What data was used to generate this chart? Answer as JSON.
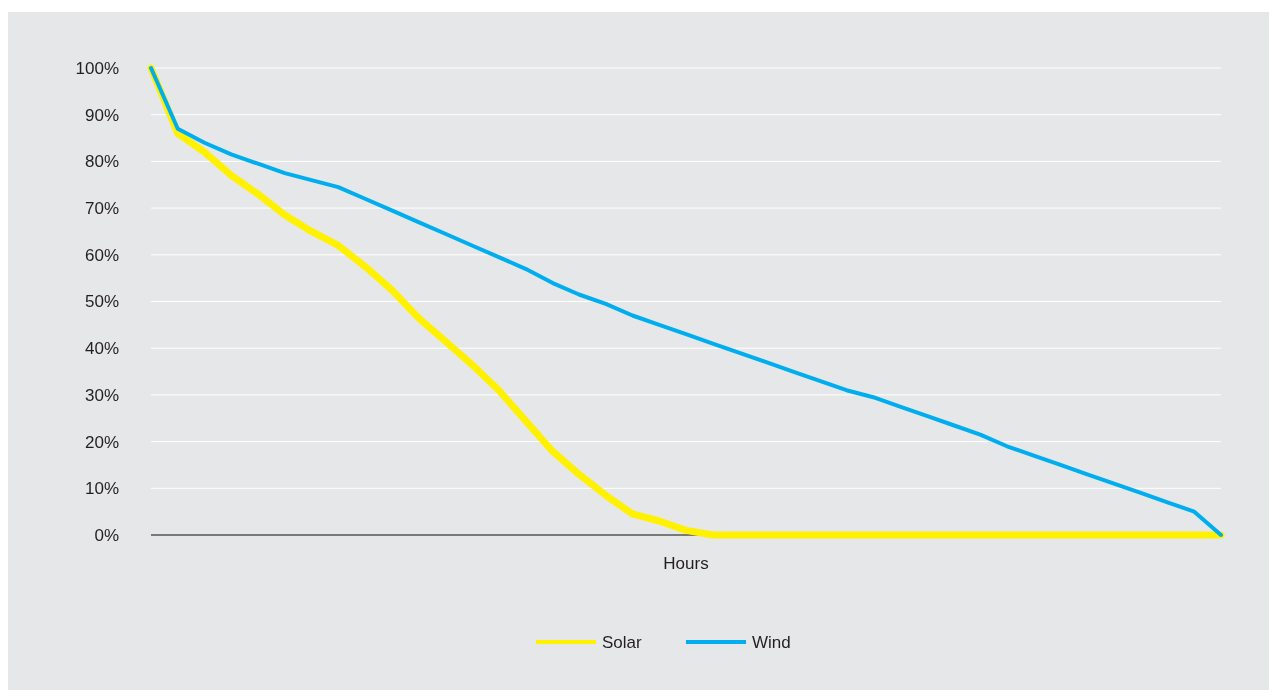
{
  "chart_data": {
    "type": "line",
    "xlabel": "Hours",
    "categories": [
      null,
      null,
      null,
      null,
      null,
      null,
      null,
      null,
      null,
      null,
      null,
      null,
      null,
      null,
      null,
      null,
      null,
      null,
      null,
      null,
      null,
      null,
      null,
      null,
      null,
      null,
      null,
      null,
      null,
      null,
      null,
      null,
      null,
      null,
      null,
      null,
      null,
      null,
      null,
      null,
      null
    ],
    "series": [
      {
        "name": "Solar",
        "color": "#fff100",
        "values": [
          100,
          86,
          82,
          77,
          73,
          68.5,
          65,
          62,
          57.5,
          52.5,
          46.5,
          41.5,
          36.5,
          31,
          24.5,
          18,
          13,
          8.5,
          4.5,
          3,
          1,
          0,
          0,
          0,
          0,
          0,
          0,
          0,
          0,
          0,
          0,
          0,
          0,
          0,
          0,
          0,
          0,
          0,
          0,
          0,
          0
        ]
      },
      {
        "name": "Wind",
        "color": "#00aeef",
        "values": [
          100,
          87,
          84,
          81.5,
          79.5,
          77.5,
          76,
          74.5,
          72,
          69.5,
          67,
          64.5,
          62,
          59.5,
          57,
          54,
          51.5,
          49.5,
          47,
          45,
          43,
          41,
          39,
          37,
          35,
          33,
          31,
          29.5,
          27.5,
          25.5,
          23.5,
          21.5,
          19,
          17,
          15,
          13,
          11,
          9,
          7,
          5,
          0
        ]
      }
    ],
    "ylim": [
      0,
      100
    ],
    "yticks": [
      {
        "value": 0,
        "label": "0%"
      },
      {
        "value": 10,
        "label": "10%"
      },
      {
        "value": 20,
        "label": "20%"
      },
      {
        "value": 30,
        "label": "30%"
      },
      {
        "value": 40,
        "label": "40%"
      },
      {
        "value": 50,
        "label": "50%"
      },
      {
        "value": 60,
        "label": "60%"
      },
      {
        "value": 70,
        "label": "70%"
      },
      {
        "value": 80,
        "label": "80%"
      },
      {
        "value": 90,
        "label": "90%"
      },
      {
        "value": 100,
        "label": "100%"
      }
    ],
    "grid": "y",
    "legend": "bottom",
    "tick_labels": "y",
    "marker": "none",
    "line_style": "solid"
  }
}
